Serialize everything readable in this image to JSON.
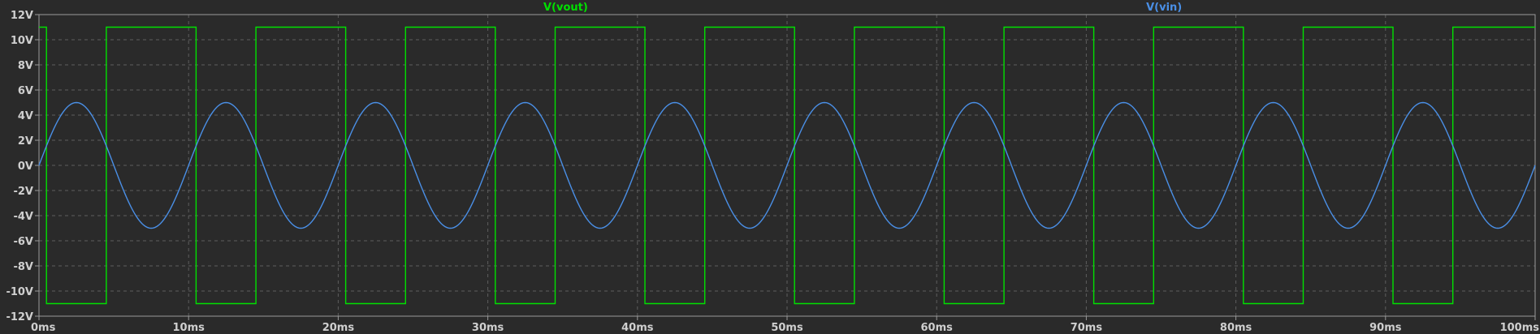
{
  "chart_data": {
    "type": "line",
    "title": "",
    "xlabel": "",
    "ylabel": "",
    "xlim": [
      0,
      100
    ],
    "ylim": [
      -12,
      12
    ],
    "grid": true,
    "legend": "top-center",
    "x_ticks": [
      {
        "value": 0,
        "label": "0ms"
      },
      {
        "value": 10,
        "label": "10ms"
      },
      {
        "value": 20,
        "label": "20ms"
      },
      {
        "value": 30,
        "label": "30ms"
      },
      {
        "value": 40,
        "label": "40ms"
      },
      {
        "value": 50,
        "label": "50ms"
      },
      {
        "value": 60,
        "label": "60ms"
      },
      {
        "value": 70,
        "label": "70ms"
      },
      {
        "value": 80,
        "label": "80ms"
      },
      {
        "value": 90,
        "label": "90ms"
      },
      {
        "value": 100,
        "label": "100ms"
      }
    ],
    "y_ticks": [
      {
        "value": 12,
        "label": "12V"
      },
      {
        "value": 10,
        "label": "10V"
      },
      {
        "value": 8,
        "label": "8V"
      },
      {
        "value": 6,
        "label": "6V"
      },
      {
        "value": 4,
        "label": "4V"
      },
      {
        "value": 2,
        "label": "2V"
      },
      {
        "value": 0,
        "label": "0V"
      },
      {
        "value": -2,
        "label": "-2V"
      },
      {
        "value": -4,
        "label": "-4V"
      },
      {
        "value": -6,
        "label": "-6V"
      },
      {
        "value": -8,
        "label": "-8V"
      },
      {
        "value": -10,
        "label": "-10V"
      },
      {
        "value": -12,
        "label": "-12V"
      }
    ],
    "series": [
      {
        "name": "V(vout)",
        "color": "#00e000",
        "type": "step",
        "x": [
          0,
          0.5,
          0.5,
          4.5,
          4.5,
          10.5,
          10.5,
          14.5,
          14.5,
          20.5,
          20.5,
          24.5,
          24.5,
          30.5,
          30.5,
          34.5,
          34.5,
          40.5,
          40.5,
          44.5,
          44.5,
          50.5,
          50.5,
          54.5,
          54.5,
          60.5,
          60.5,
          64.5,
          64.5,
          70.5,
          70.5,
          74.5,
          74.5,
          80.5,
          80.5,
          84.5,
          84.5,
          90.5,
          90.5,
          94.5,
          94.5,
          100
        ],
        "y": [
          11,
          11,
          -11,
          -11,
          11,
          11,
          -11,
          -11,
          11,
          11,
          -11,
          -11,
          11,
          11,
          -11,
          -11,
          11,
          11,
          -11,
          -11,
          11,
          11,
          -11,
          -11,
          11,
          11,
          -11,
          -11,
          11,
          11,
          -11,
          -11,
          11,
          11,
          -11,
          -11,
          11,
          11,
          -11,
          -11,
          11,
          11
        ]
      },
      {
        "name": "V(vin)",
        "color": "#4a8fe6",
        "type": "sine",
        "amplitude": 5,
        "frequency_hz": 100,
        "x_range_ms": [
          0,
          100
        ],
        "samples": 801
      }
    ]
  }
}
